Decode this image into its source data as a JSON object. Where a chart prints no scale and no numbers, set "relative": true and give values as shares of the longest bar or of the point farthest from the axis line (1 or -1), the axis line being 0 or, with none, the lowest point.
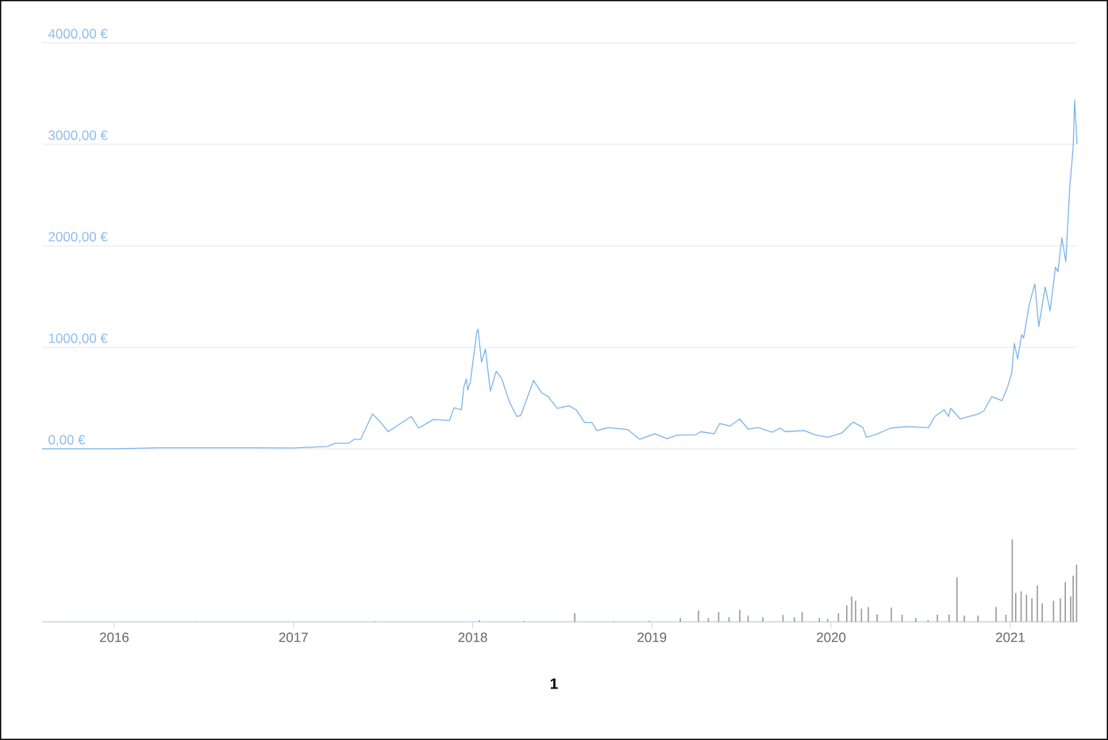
{
  "chart_data": [
    {
      "type": "line",
      "x": [
        "2015-08-07",
        "2016-01-01",
        "2016-03-31",
        "2016-07-06",
        "2016-10-11",
        "2017-01-01",
        "2017-03-11",
        "2017-03-27",
        "2017-04-23",
        "2017-05-05",
        "2017-05-18",
        "2017-06-11",
        "2017-06-27",
        "2017-07-13",
        "2017-08-10",
        "2017-08-29",
        "2017-09-13",
        "2017-10-13",
        "2017-11-15",
        "2017-11-24",
        "2017-12-09",
        "2017-12-14",
        "2017-12-19",
        "2017-12-22",
        "2017-12-27",
        "2018-01-09",
        "2018-01-12",
        "2018-01-19",
        "2018-01-27",
        "2018-02-06",
        "2018-02-18",
        "2018-03-01",
        "2018-03-17",
        "2018-04-01",
        "2018-04-09",
        "2018-05-05",
        "2018-05-21",
        "2018-06-04",
        "2018-06-22",
        "2018-07-16",
        "2018-07-31",
        "2018-08-17",
        "2018-09-01",
        "2018-09-11",
        "2018-10-04",
        "2018-11-13",
        "2018-12-07",
        "2019-01-07",
        "2019-02-01",
        "2019-02-21",
        "2019-04-01",
        "2019-04-10",
        "2019-05-08",
        "2019-05-19",
        "2019-06-09",
        "2019-06-29",
        "2019-07-16",
        "2019-08-05",
        "2019-09-03",
        "2019-09-19",
        "2019-09-30",
        "2019-11-07",
        "2019-11-29",
        "2019-12-25",
        "2020-01-22",
        "2020-02-15",
        "2020-03-06",
        "2020-03-13",
        "2020-03-31",
        "2020-05-02",
        "2020-06-03",
        "2020-07-18",
        "2020-07-31",
        "2020-08-19",
        "2020-08-28",
        "2020-09-01",
        "2020-09-21",
        "2020-10-28",
        "2020-11-08",
        "2020-11-24",
        "2020-12-15",
        "2020-12-27",
        "2021-01-04",
        "2021-01-09",
        "2021-01-16",
        "2021-01-24",
        "2021-01-28",
        "2021-02-09",
        "2021-02-20",
        "2021-02-28",
        "2021-03-13",
        "2021-03-23",
        "2021-04-03",
        "2021-04-08",
        "2021-04-16",
        "2021-04-24",
        "2021-05-02",
        "2021-05-09",
        "2021-05-12",
        "2021-05-17"
      ],
      "series": [
        {
          "color": "#7cb5ec",
          "values": [
            1,
            1,
            10,
            10,
            10,
            8,
            25,
            55,
            55,
            95,
            95,
            345,
            265,
            170,
            260,
            320,
            205,
            290,
            280,
            405,
            385,
            610,
            690,
            580,
            650,
            1140,
            1180,
            855,
            985,
            570,
            765,
            695,
            460,
            320,
            330,
            675,
            555,
            515,
            400,
            425,
            385,
            260,
            260,
            180,
            210,
            190,
            95,
            150,
            100,
            135,
            140,
            170,
            150,
            250,
            225,
            295,
            195,
            210,
            165,
            205,
            170,
            180,
            140,
            115,
            155,
            265,
            210,
            115,
            140,
            205,
            220,
            210,
            320,
            385,
            320,
            400,
            295,
            345,
            375,
            515,
            475,
            620,
            750,
            1040,
            885,
            1125,
            1090,
            1430,
            1625,
            1205,
            1595,
            1360,
            1790,
            1745,
            2080,
            1845,
            2575,
            2965,
            3435,
            3000
          ]
        }
      ],
      "xlim": [
        "2015-08-07",
        "2021-05-17"
      ],
      "ylim": [
        0,
        4000
      ],
      "yticks": [
        {
          "value": 0,
          "label": "0,00 €"
        },
        {
          "value": 1000,
          "label": "1000,00 €"
        },
        {
          "value": 2000,
          "label": "2000,00 €"
        },
        {
          "value": 3000,
          "label": "3000,00 €"
        },
        {
          "value": 4000,
          "label": "4000,00 €"
        }
      ],
      "grid": "y",
      "marker": "none",
      "tick_labels": "y"
    },
    {
      "type": "bar",
      "relative": true,
      "x": [
        "2016-06-15",
        "2017-06-15",
        "2018-01-15",
        "2018-04-15",
        "2018-07-28",
        "2018-10-15",
        "2018-12-27",
        "2019-02-28",
        "2019-04-06",
        "2019-04-26",
        "2019-05-17",
        "2019-06-07",
        "2019-06-29",
        "2019-07-16",
        "2019-08-15",
        "2019-09-25",
        "2019-10-18",
        "2019-11-03",
        "2019-12-08",
        "2019-12-25",
        "2020-01-16",
        "2020-02-02",
        "2020-02-12",
        "2020-02-20",
        "2020-03-03",
        "2020-03-17",
        "2020-04-04",
        "2020-05-03",
        "2020-05-25",
        "2020-06-22",
        "2020-07-17",
        "2020-08-05",
        "2020-08-29",
        "2020-09-14",
        "2020-09-29",
        "2020-10-27",
        "2020-12-03",
        "2020-12-23",
        "2021-01-05",
        "2021-01-12",
        "2021-01-23",
        "2021-02-03",
        "2021-02-14",
        "2021-02-25",
        "2021-03-07",
        "2021-03-30",
        "2021-04-13",
        "2021-04-23",
        "2021-05-04",
        "2021-05-09",
        "2021-05-16"
      ],
      "series": [
        {
          "color": "#999999",
          "values": [
            0.005,
            0.008,
            0.02,
            0.01,
            0.105,
            0.008,
            0.013,
            0.046,
            0.139,
            0.046,
            0.118,
            0.055,
            0.147,
            0.076,
            0.055,
            0.084,
            0.055,
            0.118,
            0.046,
            0.034,
            0.105,
            0.2,
            0.307,
            0.256,
            0.16,
            0.18,
            0.088,
            0.172,
            0.088,
            0.046,
            0.021,
            0.088,
            0.088,
            0.538,
            0.076,
            0.076,
            0.18,
            0.088,
            1.0,
            0.349,
            0.37,
            0.328,
            0.286,
            0.441,
            0.223,
            0.256,
            0.286,
            0.483,
            0.307,
            0.559,
            0.693
          ]
        }
      ],
      "xlim": [
        "2015-08-07",
        "2021-05-17"
      ],
      "xticks": [
        "2016",
        "2017",
        "2018",
        "2019",
        "2020",
        "2021"
      ],
      "tick_labels": "x",
      "annotations": [
        "1"
      ]
    }
  ]
}
